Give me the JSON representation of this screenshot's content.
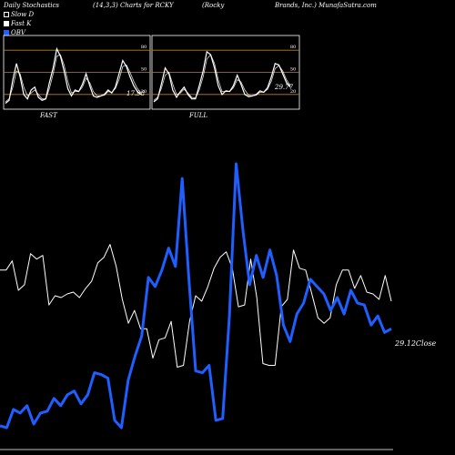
{
  "header": {
    "left": "Daily Stochastics",
    "params": "(14,3,3) Charts for RCKY",
    "company_a": "(Rocky",
    "company_b": "Brands, Inc.) MunafaSutra.com"
  },
  "legend": [
    {
      "label": "Slow  D",
      "color": "#ffffff"
    },
    {
      "label": "Fast K",
      "color": "#ffffff"
    },
    {
      "label": "OBV",
      "color": "#1f5eff"
    }
  ],
  "colors": {
    "background": "#000000",
    "band": "#b8860b",
    "obv": "#1f5eff",
    "price": "#ffffff"
  },
  "chart_data": [
    {
      "type": "line",
      "title": "FAST",
      "panel_label": "FAST",
      "ylim": [
        0,
        100
      ],
      "yticks": [
        20,
        50,
        80
      ],
      "bands": [
        20,
        50,
        80
      ],
      "last_value_label": "17.98",
      "series": [
        {
          "values": [
            8,
            12,
            40,
            62,
            44,
            20,
            14,
            26,
            30,
            16,
            12,
            14,
            36,
            56,
            82,
            72,
            52,
            28,
            18,
            26,
            24,
            34,
            48,
            32,
            18,
            16,
            18,
            20,
            26,
            22,
            30,
            48,
            66,
            58,
            44,
            32,
            24,
            20
          ]
        },
        {
          "values": [
            10,
            14,
            30,
            52,
            48,
            30,
            18,
            22,
            26,
            20,
            14,
            14,
            28,
            48,
            72,
            74,
            60,
            38,
            22,
            24,
            24,
            30,
            42,
            36,
            24,
            18,
            18,
            19,
            24,
            23,
            28,
            40,
            58,
            60,
            50,
            38,
            28,
            22
          ]
        }
      ]
    },
    {
      "type": "line",
      "title": "FULL",
      "panel_label": "FULL",
      "ylim": [
        0,
        100
      ],
      "yticks": [
        20,
        50,
        80
      ],
      "bands": [
        20,
        50,
        80
      ],
      "last_value_label": "29.77",
      "series": [
        {
          "values": [
            10,
            14,
            34,
            56,
            48,
            26,
            16,
            24,
            30,
            20,
            14,
            14,
            32,
            52,
            78,
            74,
            56,
            32,
            20,
            25,
            24,
            32,
            46,
            34,
            20,
            17,
            18,
            20,
            25,
            23,
            29,
            44,
            62,
            60,
            48,
            36,
            30
          ]
        },
        {
          "values": [
            12,
            16,
            28,
            46,
            50,
            34,
            20,
            22,
            27,
            22,
            16,
            15,
            26,
            44,
            68,
            74,
            62,
            40,
            24,
            24,
            24,
            29,
            40,
            37,
            26,
            19,
            18,
            19,
            23,
            23,
            27,
            38,
            55,
            59,
            52,
            40,
            32
          ]
        }
      ]
    },
    {
      "type": "line",
      "title": "",
      "close_label": "29.12Close",
      "series": [
        {
          "name": "OBV",
          "values": [
            5,
            4,
            14,
            12,
            16,
            6,
            12,
            13,
            20,
            16,
            22,
            24,
            17,
            22,
            34,
            33,
            31,
            8,
            4,
            30,
            43,
            54,
            86,
            81,
            90,
            102,
            92,
            140,
            85,
            35,
            34,
            38,
            8,
            9,
            65,
            148,
            112,
            82,
            98,
            86,
            101,
            87,
            60,
            51,
            66,
            72,
            85,
            81,
            77,
            68,
            75,
            66,
            79,
            72,
            71,
            60,
            65,
            56,
            58
          ]
        },
        {
          "name": "Price",
          "values": [
            90,
            90,
            95,
            79,
            82,
            99,
            96,
            98,
            71,
            76,
            75,
            77,
            78,
            75,
            80,
            84,
            94,
            97,
            104,
            92,
            74,
            61,
            68,
            58,
            58,
            42,
            52,
            53,
            62,
            37,
            38,
            62,
            76,
            73,
            81,
            91,
            97,
            100,
            91,
            70,
            71,
            96,
            75,
            39,
            38,
            38,
            70,
            74,
            101,
            91,
            90,
            77,
            64,
            61,
            64,
            82,
            90,
            90,
            80,
            87,
            78,
            77,
            74,
            87,
            73
          ]
        }
      ]
    }
  ]
}
